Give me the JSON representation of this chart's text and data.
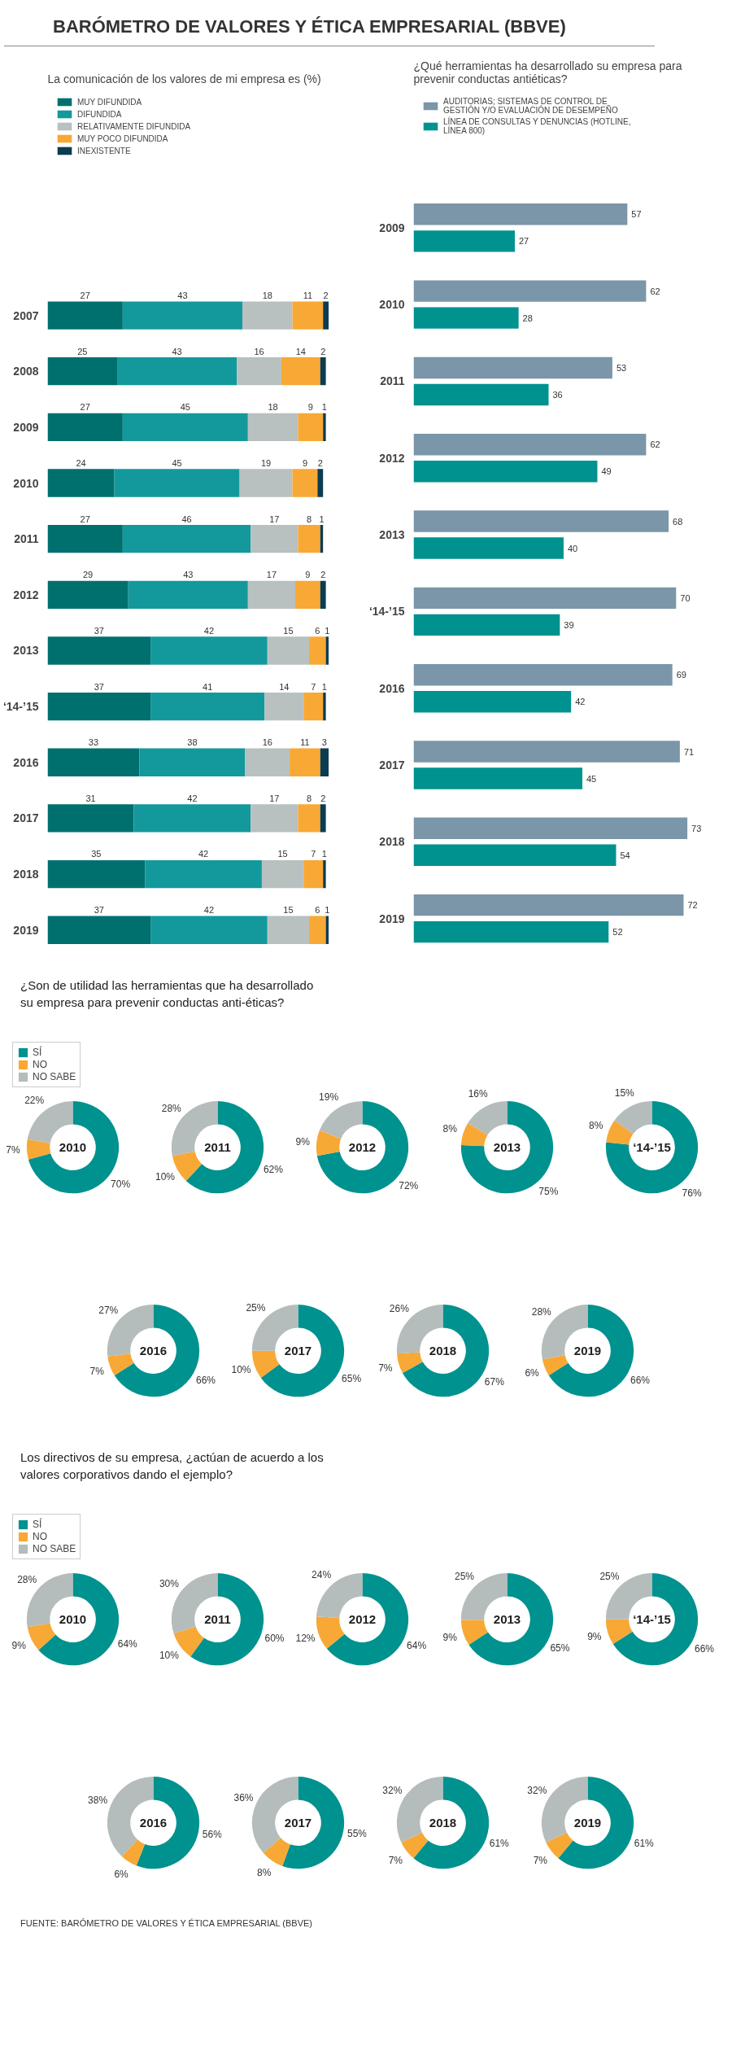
{
  "chart_data": [
    {
      "type": "bar",
      "title": "BARÓMETRO DE VALORES Y ÉTICA EMPRESARIAL (BBVE)",
      "subtitle": "La comunicación de los valores de mi empresa es (%)",
      "orientation": "horizontal",
      "stacked": true,
      "data_labels": true,
      "legend": "top",
      "categories": [
        "2007",
        "2008",
        "2009",
        "2010",
        "2011",
        "2012",
        "2013",
        "‘14-’15",
        "2016",
        "2017",
        "2018",
        "2019"
      ],
      "series": [
        {
          "name": "MUY DIFUNDIDA",
          "color": "#00706f",
          "values": [
            27,
            25,
            27,
            24,
            27,
            29,
            37,
            37,
            33,
            31,
            35,
            37
          ]
        },
        {
          "name": "DIFUNDIDA",
          "color": "#13999c",
          "values": [
            43,
            43,
            45,
            45,
            46,
            43,
            42,
            41,
            38,
            42,
            42,
            42
          ]
        },
        {
          "name": "RELATIVAMENTE DIFUNDIDA",
          "color": "#b8c0c0",
          "values": [
            18,
            16,
            18,
            19,
            17,
            17,
            15,
            14,
            16,
            17,
            15,
            15
          ]
        },
        {
          "name": "MUY POCO DIFUNDIDA",
          "color": "#f8a835",
          "values": [
            11,
            14,
            9,
            9,
            8,
            9,
            6,
            7,
            11,
            8,
            7,
            6
          ]
        },
        {
          "name": "INEXISTENTE",
          "color": "#0c3c50",
          "values": [
            2,
            2,
            1,
            2,
            1,
            2,
            1,
            1,
            3,
            2,
            1,
            1
          ]
        }
      ]
    },
    {
      "type": "bar",
      "title": "¿Qué herramientas ha desarrollado su empresa para prevenir conductas antiéticas?",
      "orientation": "horizontal",
      "data_labels": true,
      "legend": "top",
      "categories": [
        "2009",
        "2010",
        "2011",
        "2012",
        "2013",
        "‘14-’15",
        "2016",
        "2017",
        "2018",
        "2019"
      ],
      "series": [
        {
          "name": "AUDITORIAS; SISTEMAS DE CONTROL DE GESTIÓN Y/O EVALUACIÓN DE DESEMPEÑO",
          "color": "#7a96a8",
          "values": [
            57,
            62,
            53,
            62,
            68,
            70,
            69,
            71,
            73,
            72
          ]
        },
        {
          "name": "LÍNEA DE CONSULTAS Y DENUNCIAS (HOTLINE, LÍNEA 800)",
          "color": "#00928f",
          "values": [
            27,
            28,
            36,
            49,
            40,
            39,
            42,
            45,
            54,
            52
          ]
        }
      ]
    },
    {
      "type": "donut",
      "title": "2010",
      "subtitle": "¿Son de utilidad las herramientas que ha desarrollado su empresa para prevenir conductas anti-éticas?",
      "legend": "top",
      "categories": [
        "SÍ",
        "NO",
        "NO SABE"
      ],
      "values": [
        70,
        7,
        22
      ],
      "value_labels": [
        "70%",
        "7%",
        "22%"
      ],
      "colors": [
        "#00928f",
        "#f8a835",
        "#b5bcbc"
      ]
    },
    {
      "type": "donut",
      "title": "2011",
      "values": [
        62,
        10,
        28
      ],
      "value_labels": [
        "62%",
        "10%",
        "28%"
      ],
      "colors": [
        "#00928f",
        "#f8a835",
        "#b5bcbc"
      ]
    },
    {
      "type": "donut",
      "title": "2012",
      "values": [
        72,
        9,
        19
      ],
      "value_labels": [
        "72%",
        "9%",
        "19%"
      ],
      "colors": [
        "#00928f",
        "#f8a835",
        "#b5bcbc"
      ]
    },
    {
      "type": "donut",
      "title": "2013",
      "values": [
        75,
        8,
        16
      ],
      "value_labels": [
        "75%",
        "8%",
        "16%"
      ],
      "colors": [
        "#00928f",
        "#f8a835",
        "#b5bcbc"
      ]
    },
    {
      "type": "donut",
      "title": "‘14-’15",
      "values": [
        76,
        8,
        15
      ],
      "value_labels": [
        "76%",
        "8%",
        "15%"
      ],
      "colors": [
        "#00928f",
        "#f8a835",
        "#b5bcbc"
      ]
    },
    {
      "type": "donut",
      "title": "2016",
      "values": [
        66,
        7,
        27
      ],
      "value_labels": [
        "66%",
        "7%",
        "27%"
      ],
      "colors": [
        "#00928f",
        "#f8a835",
        "#b5bcbc"
      ]
    },
    {
      "type": "donut",
      "title": "2017",
      "values": [
        65,
        10,
        25
      ],
      "value_labels": [
        "65%",
        "10%",
        "25%"
      ],
      "colors": [
        "#00928f",
        "#f8a835",
        "#b5bcbc"
      ]
    },
    {
      "type": "donut",
      "title": "2018",
      "values": [
        67,
        7,
        26
      ],
      "value_labels": [
        "67%",
        "7%",
        "26%"
      ],
      "colors": [
        "#00928f",
        "#f8a835",
        "#b5bcbc"
      ]
    },
    {
      "type": "donut",
      "title": "2019",
      "values": [
        66,
        6,
        28
      ],
      "value_labels": [
        "66%",
        "6%",
        "28%"
      ],
      "colors": [
        "#00928f",
        "#f8a835",
        "#b5bcbc"
      ]
    },
    {
      "type": "donut",
      "title": "2010",
      "subtitle": "Los directivos de su empresa, ¿actúan de acuerdo a los valores corporativos dando el ejemplo?",
      "legend": "top",
      "categories": [
        "SÍ",
        "NO",
        "NO SABE"
      ],
      "values": [
        64,
        9,
        28
      ],
      "value_labels": [
        "64%",
        "9%",
        "28%"
      ],
      "colors": [
        "#00928f",
        "#f8a835",
        "#b5bcbc"
      ]
    },
    {
      "type": "donut",
      "title": "2011",
      "values": [
        60,
        10,
        30
      ],
      "value_labels": [
        "60%",
        "10%",
        "30%"
      ],
      "colors": [
        "#00928f",
        "#f8a835",
        "#b5bcbc"
      ]
    },
    {
      "type": "donut",
      "title": "2012",
      "values": [
        64,
        12,
        24
      ],
      "value_labels": [
        "64%",
        "12%",
        "24%"
      ],
      "colors": [
        "#00928f",
        "#f8a835",
        "#b5bcbc"
      ]
    },
    {
      "type": "donut",
      "title": "2013",
      "values": [
        65,
        9,
        25
      ],
      "value_labels": [
        "65%",
        "9%",
        "25%"
      ],
      "colors": [
        "#00928f",
        "#f8a835",
        "#b5bcbc"
      ]
    },
    {
      "type": "donut",
      "title": "‘14-’15",
      "values": [
        66,
        9,
        25
      ],
      "value_labels": [
        "66%",
        "9%",
        "25%"
      ],
      "colors": [
        "#00928f",
        "#f8a835",
        "#b5bcbc"
      ]
    },
    {
      "type": "donut",
      "title": "2016",
      "values": [
        56,
        6,
        38
      ],
      "value_labels": [
        "56%",
        "6%",
        "38%"
      ],
      "colors": [
        "#00928f",
        "#f8a835",
        "#b5bcbc"
      ]
    },
    {
      "type": "donut",
      "title": "2017",
      "values": [
        55,
        8,
        36
      ],
      "value_labels": [
        "55%",
        "8%",
        "36%"
      ],
      "colors": [
        "#00928f",
        "#f8a835",
        "#b5bcbc"
      ]
    },
    {
      "type": "donut",
      "title": "2018",
      "values": [
        61,
        7,
        32
      ],
      "value_labels": [
        "61%",
        "7%",
        "32%"
      ],
      "colors": [
        "#00928f",
        "#f8a835",
        "#b5bcbc"
      ]
    },
    {
      "type": "donut",
      "title": "2019",
      "values": [
        61,
        7,
        32
      ],
      "value_labels": [
        "61%",
        "7%",
        "32%"
      ],
      "colors": [
        "#00928f",
        "#f8a835",
        "#b5bcbc"
      ],
      "annotations": [
        "FUENTE: BARÓMETRO DE VALORES Y ÉTICA EMPRESARIAL (BBVE)"
      ]
    }
  ]
}
